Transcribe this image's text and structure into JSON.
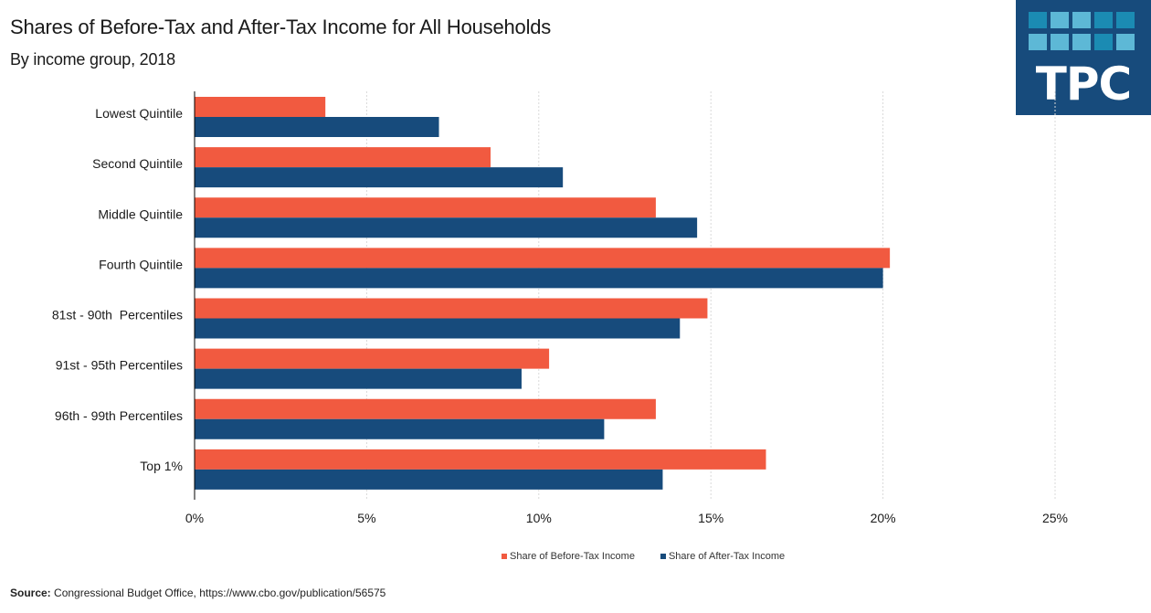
{
  "header": {
    "title": "Shares of Before-Tax and After-Tax Income for All Households",
    "subtitle": "By income group, 2018"
  },
  "logo": {
    "text": "TPC",
    "background": "#174b7c",
    "squares": [
      "#1b8bb3",
      "#5db8d6",
      "#5db8d6",
      "#1b8bb3",
      "#1b8bb3",
      "#5db8d6",
      "#5db8d6",
      "#5db8d6",
      "#1b8bb3",
      "#5db8d6"
    ]
  },
  "chart_data": {
    "type": "bar",
    "orientation": "horizontal",
    "title": "Shares of Before-Tax and After-Tax Income for All Households",
    "subtitle": "By income group, 2018",
    "xlabel": "",
    "ylabel": "",
    "categories": [
      "Lowest Quintile",
      "Second Quintile",
      "Middle Quintile",
      "Fourth Quintile",
      "81st - 90th  Percentiles",
      "91st - 95th Percentiles",
      "96th - 99th Percentiles",
      "Top 1%"
    ],
    "series": [
      {
        "name": "Share of Before-Tax Income",
        "color": "#f15a40",
        "values": [
          3.8,
          8.6,
          13.4,
          20.2,
          14.9,
          10.3,
          13.4,
          16.6
        ]
      },
      {
        "name": "Share of After-Tax Income",
        "color": "#174b7c",
        "values": [
          7.1,
          10.7,
          14.6,
          20.0,
          14.1,
          9.5,
          11.9,
          13.6
        ]
      }
    ],
    "xlim": [
      0,
      25
    ],
    "xticks": [
      0,
      5,
      10,
      15,
      20,
      25
    ],
    "xtick_labels": [
      "0%",
      "5%",
      "10%",
      "15%",
      "20%",
      "25%"
    ],
    "grid": "vertical dotted",
    "legend_position": "bottom-center"
  },
  "footer": {
    "source_label": "Source:",
    "source_text": " Congressional Budget Office,  https://www.cbo.gov/publication/56575"
  }
}
